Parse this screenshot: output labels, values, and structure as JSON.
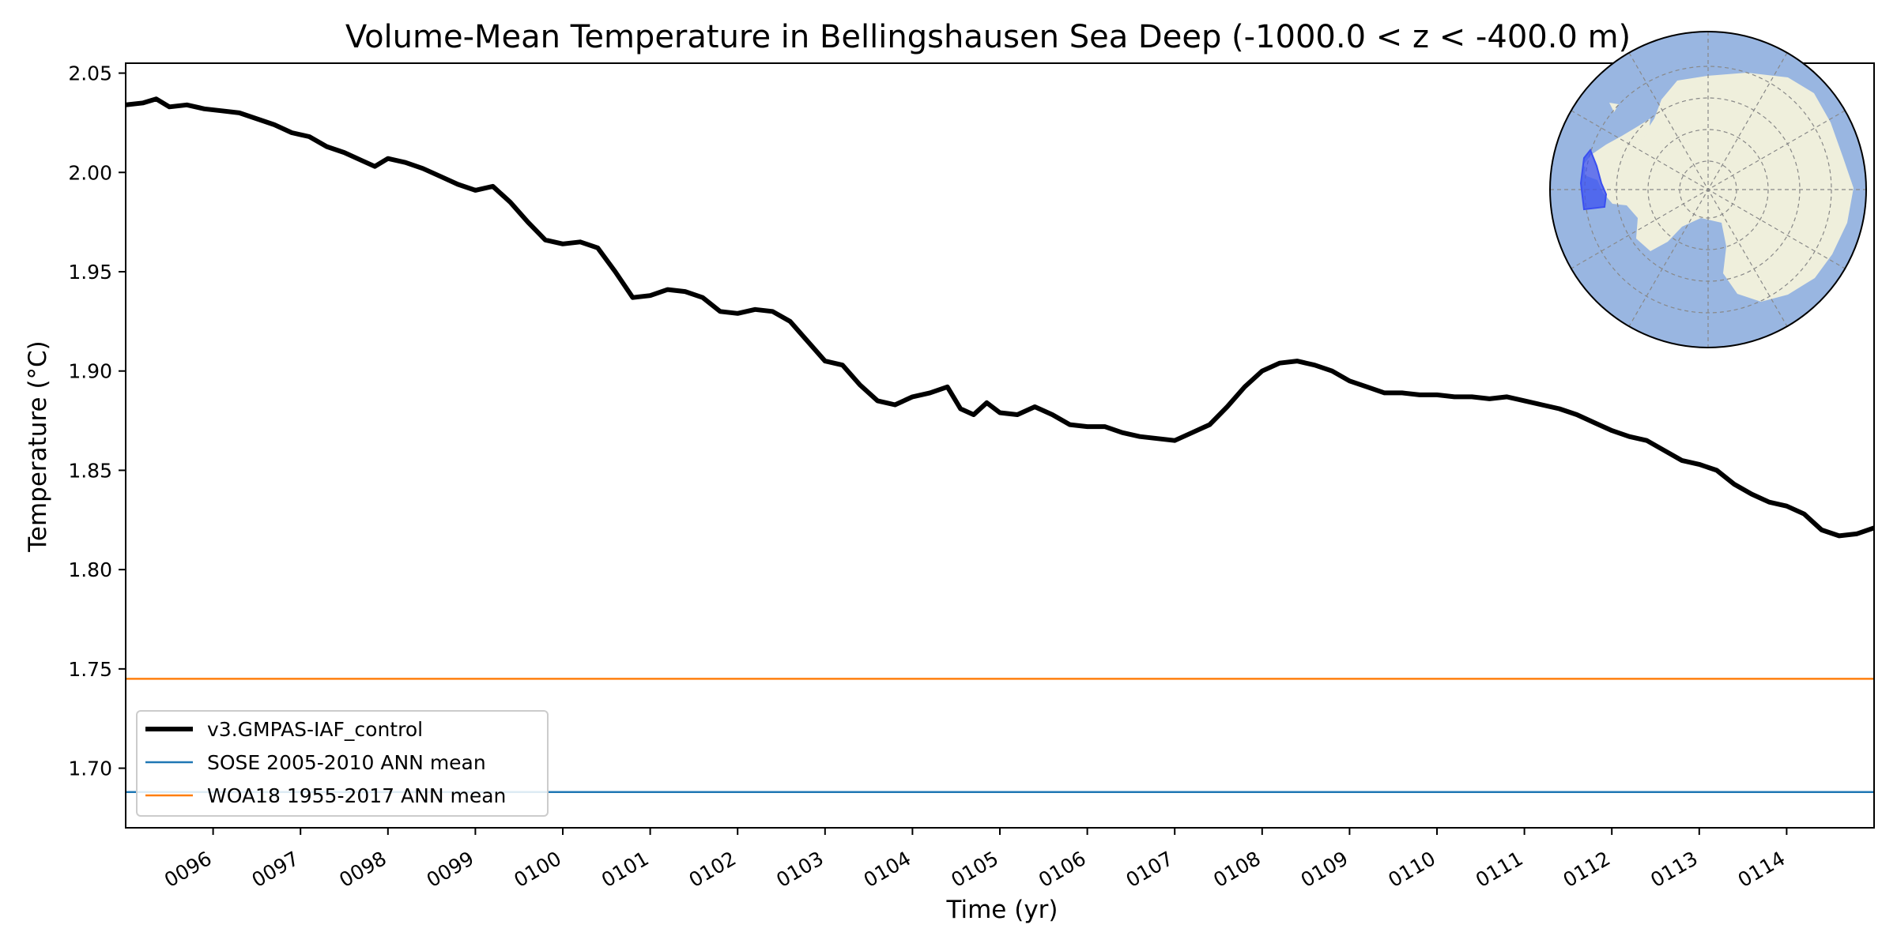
{
  "chart_data": {
    "type": "line",
    "title": "Volume-Mean Temperature in Bellingshausen Sea Deep (-1000.0 < z < -400.0 m)",
    "xlabel": "Time (yr)",
    "ylabel": "Temperature (°C)",
    "xlim": [
      95.0,
      115.0
    ],
    "ylim": [
      1.67,
      2.055
    ],
    "x_ticks": [
      96,
      97,
      98,
      99,
      100,
      101,
      102,
      103,
      104,
      105,
      106,
      107,
      108,
      109,
      110,
      111,
      112,
      113,
      114
    ],
    "x_tick_labels": [
      "0096",
      "0097",
      "0098",
      "0099",
      "0100",
      "0101",
      "0102",
      "0103",
      "0104",
      "0105",
      "0106",
      "0107",
      "0108",
      "0109",
      "0110",
      "0111",
      "0112",
      "0113",
      "0114"
    ],
    "y_ticks": [
      1.7,
      1.75,
      1.8,
      1.85,
      1.9,
      1.95,
      2.0,
      2.05
    ],
    "y_tick_labels": [
      "1.70",
      "1.75",
      "1.80",
      "1.85",
      "1.90",
      "1.95",
      "2.00",
      "2.05"
    ],
    "legend_position": "lower-left",
    "series": [
      {
        "name": "v3.GMPAS-IAF_control",
        "color": "#000000",
        "x": [
          95.0,
          95.2,
          95.35,
          95.5,
          95.7,
          95.9,
          96.1,
          96.3,
          96.5,
          96.7,
          96.9,
          97.1,
          97.3,
          97.5,
          97.7,
          97.85,
          98.0,
          98.2,
          98.4,
          98.6,
          98.8,
          99.0,
          99.2,
          99.4,
          99.6,
          99.8,
          100.0,
          100.2,
          100.4,
          100.6,
          100.8,
          101.0,
          101.2,
          101.4,
          101.6,
          101.8,
          102.0,
          102.2,
          102.4,
          102.6,
          102.8,
          103.0,
          103.2,
          103.4,
          103.6,
          103.8,
          104.0,
          104.2,
          104.4,
          104.55,
          104.7,
          104.85,
          105.0,
          105.2,
          105.4,
          105.6,
          105.8,
          106.0,
          106.2,
          106.4,
          106.6,
          106.8,
          107.0,
          107.2,
          107.4,
          107.6,
          107.8,
          108.0,
          108.2,
          108.4,
          108.6,
          108.8,
          109.0,
          109.2,
          109.4,
          109.6,
          109.8,
          110.0,
          110.2,
          110.4,
          110.6,
          110.8,
          111.0,
          111.2,
          111.4,
          111.6,
          111.8,
          112.0,
          112.2,
          112.4,
          112.6,
          112.8,
          113.0,
          113.2,
          113.4,
          113.6,
          113.8,
          114.0,
          114.2,
          114.4,
          114.6,
          114.8,
          115.0
        ],
        "y": [
          2.034,
          2.035,
          2.037,
          2.033,
          2.034,
          2.032,
          2.031,
          2.03,
          2.027,
          2.024,
          2.02,
          2.018,
          2.013,
          2.01,
          2.006,
          2.003,
          2.007,
          2.005,
          2.002,
          1.998,
          1.994,
          1.991,
          1.993,
          1.985,
          1.975,
          1.966,
          1.964,
          1.965,
          1.962,
          1.95,
          1.937,
          1.938,
          1.941,
          1.94,
          1.937,
          1.93,
          1.929,
          1.931,
          1.93,
          1.925,
          1.915,
          1.905,
          1.903,
          1.893,
          1.885,
          1.883,
          1.887,
          1.889,
          1.892,
          1.881,
          1.878,
          1.884,
          1.879,
          1.878,
          1.882,
          1.878,
          1.873,
          1.872,
          1.872,
          1.869,
          1.867,
          1.866,
          1.865,
          1.869,
          1.873,
          1.882,
          1.892,
          1.9,
          1.904,
          1.905,
          1.903,
          1.9,
          1.895,
          1.892,
          1.889,
          1.889,
          1.888,
          1.888,
          1.887,
          1.887,
          1.886,
          1.887,
          1.885,
          1.883,
          1.881,
          1.878,
          1.874,
          1.87,
          1.867,
          1.865,
          1.86,
          1.855,
          1.853,
          1.85,
          1.843,
          1.838,
          1.834,
          1.832,
          1.828,
          1.82,
          1.817,
          1.818,
          1.821
        ]
      },
      {
        "name": "SOSE 2005-2010 ANN mean",
        "color": "#1f77b4",
        "constant": 1.688
      },
      {
        "name": "WOA18 1955-2017 ANN mean",
        "color": "#ff7f0e",
        "constant": 1.745
      }
    ]
  },
  "inset_map": {
    "type": "south-polar-stereographic",
    "ocean_color": "#99b6e1",
    "land_color": "#efefdc",
    "region_color": "#3a4ff0",
    "region": "Bellingshausen Sea"
  }
}
